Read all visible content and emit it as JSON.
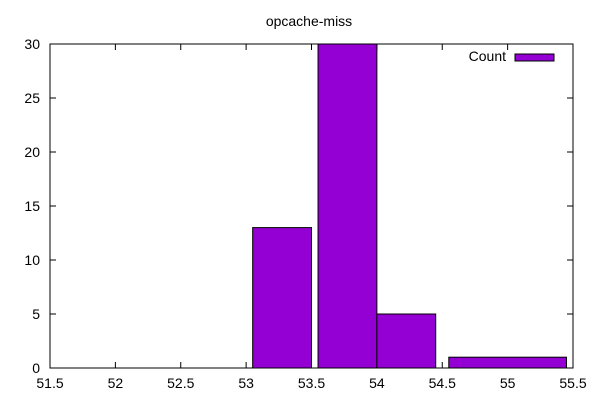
{
  "chart_data": {
    "type": "bar",
    "title": "opcache-miss",
    "xlabel": "",
    "ylabel": "",
    "xlim": [
      51.5,
      55.5
    ],
    "ylim": [
      0,
      30
    ],
    "x_ticks": [
      "51.5",
      "52",
      "52.5",
      "53",
      "53.5",
      "54",
      "54.5",
      "55",
      "55.5"
    ],
    "y_ticks": [
      "0",
      "5",
      "10",
      "15",
      "20",
      "25",
      "30"
    ],
    "grid": false,
    "legend": {
      "position": "top-right",
      "entries": [
        "Count"
      ]
    },
    "bars_x_units": [
      {
        "x0": 53.05,
        "x1": 53.5,
        "value": 13
      },
      {
        "x0": 53.55,
        "x1": 54.0,
        "value": 30
      },
      {
        "x0": 54.0,
        "x1": 54.45,
        "value": 5
      },
      {
        "x0": 54.55,
        "x1": 55.45,
        "value": 1
      }
    ],
    "series": [
      {
        "name": "Count",
        "color": "#9400d3"
      }
    ]
  }
}
